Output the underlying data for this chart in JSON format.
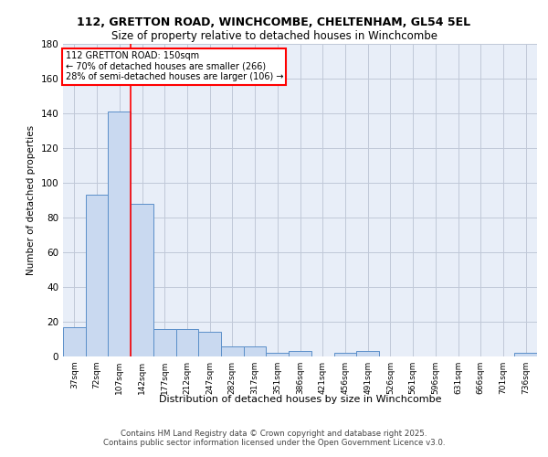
{
  "title_line1": "112, GRETTON ROAD, WINCHCOMBE, CHELTENHAM, GL54 5EL",
  "title_line2": "Size of property relative to detached houses in Winchcombe",
  "xlabel": "Distribution of detached houses by size in Winchcombe",
  "ylabel": "Number of detached properties",
  "categories": [
    "37sqm",
    "72sqm",
    "107sqm",
    "142sqm",
    "177sqm",
    "212sqm",
    "247sqm",
    "282sqm",
    "317sqm",
    "351sqm",
    "386sqm",
    "421sqm",
    "456sqm",
    "491sqm",
    "526sqm",
    "561sqm",
    "596sqm",
    "631sqm",
    "666sqm",
    "701sqm",
    "736sqm"
  ],
  "values": [
    17,
    93,
    141,
    88,
    16,
    16,
    14,
    6,
    6,
    2,
    3,
    0,
    2,
    3,
    0,
    0,
    0,
    0,
    0,
    0,
    2
  ],
  "bar_color": "#c9d9f0",
  "bar_edge_color": "#5b8fc9",
  "red_line_x": 2.5,
  "annotation_text": "112 GRETTON ROAD: 150sqm\n← 70% of detached houses are smaller (266)\n28% of semi-detached houses are larger (106) →",
  "annotation_box_color": "white",
  "annotation_box_edge": "red",
  "ylim": [
    0,
    180
  ],
  "yticks": [
    0,
    20,
    40,
    60,
    80,
    100,
    120,
    140,
    160,
    180
  ],
  "grid_color": "#c0c8d8",
  "background_color": "#e8eef8",
  "footer_line1": "Contains HM Land Registry data © Crown copyright and database right 2025.",
  "footer_line2": "Contains public sector information licensed under the Open Government Licence v3.0."
}
